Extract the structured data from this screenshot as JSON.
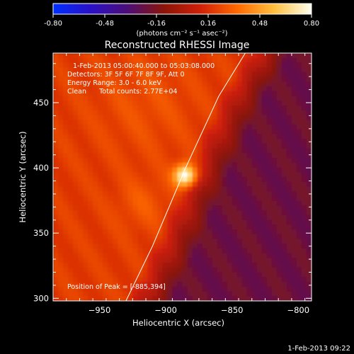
{
  "chart_data": {
    "type": "heatmap",
    "title": "Reconstructed RHESSI Image",
    "xlabel": "Heliocentric X (arcsec)",
    "ylabel": "Heliocentric Y (arcsec)",
    "xlim": [
      -985,
      -790
    ],
    "ylim": [
      298,
      488
    ],
    "xticks": [
      -950,
      -900,
      -850,
      -800
    ],
    "yticks": [
      300,
      350,
      400,
      450
    ],
    "colorbar": {
      "label": "(photons cm⁻² s⁻¹ asec⁻²)",
      "range": [
        -0.8,
        0.8
      ],
      "ticks": [
        "-0.80",
        "-0.48",
        "-0.16",
        "0.16",
        "0.48",
        "0.80"
      ],
      "colors": [
        "#0030ff",
        "#2a10c8",
        "#4b0e78",
        "#8a1408",
        "#d02008",
        "#ff6a00",
        "#ffc040",
        "#fffff0"
      ]
    },
    "info_lines": [
      "1-Feb-2013 05:00:40.000 to 05:03:08.000",
      "Detectors: 3F 5F 6F 7F 8F 9F, Att 0",
      "Energy Range: 3.0 - 6.0 keV",
      "Clean      Total counts: 2.77E+04"
    ],
    "peak_label": "Position of Peak = [-885,394]",
    "peak": {
      "x": -885,
      "y": 394,
      "value": 0.8
    },
    "limb_curve": {
      "x": [
        -930,
        -910,
        -885,
        -860,
        -840
      ],
      "y": [
        298,
        340,
        400,
        455,
        488
      ]
    },
    "background_level": 0.2,
    "emission_blobs": [
      {
        "x": -885,
        "y": 394,
        "sigma": 6,
        "amp": 0.65
      },
      {
        "x": -918,
        "y": 372,
        "sigma": 14,
        "amp": 0.08
      },
      {
        "x": -915,
        "y": 448,
        "sigma": 28,
        "amp": 0.06
      }
    ],
    "timestamp": "1-Feb-2013 09:22"
  }
}
